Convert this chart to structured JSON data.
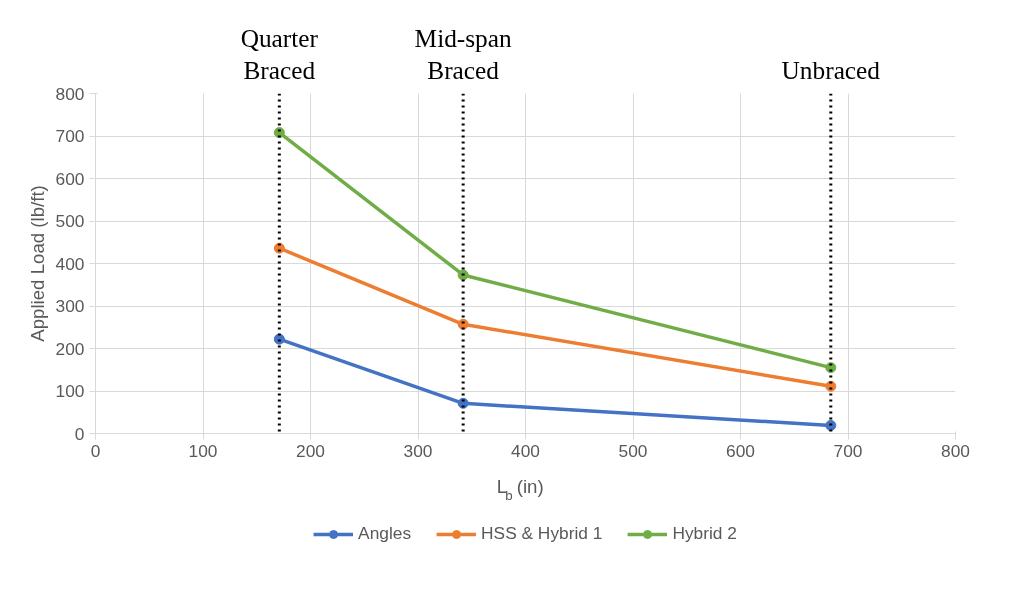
{
  "chart_data": {
    "type": "line",
    "xlabel": "L$_{b}$ (in)",
    "ylabel": "Applied Load (lb/ft)",
    "x": [
      171,
      342,
      684
    ],
    "series": [
      {
        "name": "Angles",
        "color": "#4472c4",
        "values": [
          222,
          71,
          19
        ]
      },
      {
        "name": "HSS & Hybrid 1",
        "color": "#ed7d31",
        "values": [
          436,
          257,
          111
        ]
      },
      {
        "name": "Hybrid 2",
        "color": "#70ad47",
        "values": [
          708,
          373,
          155
        ]
      }
    ],
    "xlim": [
      0,
      800
    ],
    "xticks": [
      0,
      100,
      200,
      300,
      400,
      500,
      600,
      700,
      800
    ],
    "ylim": [
      0,
      800
    ],
    "yticks": [
      0,
      100,
      200,
      300,
      400,
      500,
      600,
      700,
      800
    ],
    "ref_lines": [
      {
        "axis": "x",
        "value": 171,
        "label": "Quarter\nBraced",
        "color": "#000000",
        "line_style": "dotted"
      },
      {
        "axis": "x",
        "value": 342,
        "label": "Mid-span\nBraced",
        "color": "#000000",
        "line_style": "dotted"
      },
      {
        "axis": "x",
        "value": 684,
        "label": "Unbraced",
        "color": "#000000",
        "line_style": "dotted"
      }
    ],
    "grid": true,
    "legend": "bottom",
    "marker": "circle",
    "line_style": "solid"
  }
}
